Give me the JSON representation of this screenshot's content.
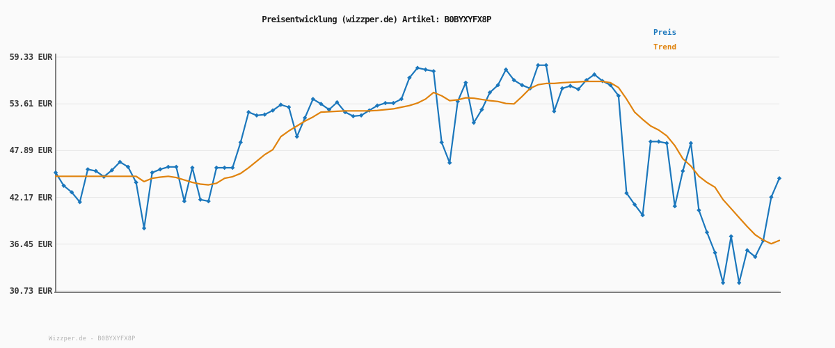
{
  "header": {
    "title": "Preisentwicklung (wizzper.de) Artikel: B0BYXYFX8P"
  },
  "legend": {
    "preis": "Preis",
    "trend": "Trend"
  },
  "watermark": "Wizzper.de - B0BYXYFX8P",
  "colors": {
    "preis": "#1b77bc",
    "trend": "#e0830e",
    "grid": "#e6e6e6",
    "axis": "#7f7f7f",
    "background": "#fafafa"
  },
  "chart_data": {
    "type": "line",
    "title": "Preisentwicklung (wizzper.de) Artikel: B0BYXYFX8P",
    "xlabel": "",
    "ylabel": "",
    "ylim": [
      30.73,
      59.33
    ],
    "grid": true,
    "legend_position": "top-right",
    "yticks": [
      {
        "label": "59.33 EUR",
        "value": 59.33
      },
      {
        "label": "53.61 EUR",
        "value": 53.61
      },
      {
        "label": "47.89 EUR",
        "value": 47.89
      },
      {
        "label": "42.17 EUR",
        "value": 42.17
      },
      {
        "label": "36.45 EUR",
        "value": 36.45
      },
      {
        "label": "30.73 EUR",
        "value": 30.73
      }
    ],
    "unit": "EUR",
    "series": [
      {
        "name": "Preis",
        "color": "#1b77bc",
        "marker": "diamond",
        "values": [
          45.2,
          43.6,
          42.8,
          41.6,
          45.6,
          45.4,
          44.7,
          45.5,
          46.5,
          45.9,
          44.0,
          38.4,
          45.2,
          45.6,
          45.9,
          45.9,
          41.7,
          45.8,
          41.9,
          41.7,
          45.8,
          45.8,
          45.8,
          48.9,
          52.6,
          52.2,
          52.3,
          52.8,
          53.5,
          53.2,
          49.6,
          51.9,
          54.2,
          53.6,
          52.9,
          53.8,
          52.6,
          52.1,
          52.2,
          52.8,
          53.4,
          53.7,
          53.7,
          54.2,
          56.8,
          58.0,
          57.8,
          57.6,
          48.9,
          46.4,
          53.9,
          56.2,
          51.3,
          52.9,
          55.0,
          55.9,
          57.8,
          56.5,
          55.9,
          55.5,
          58.33,
          58.33,
          52.7,
          55.5,
          55.8,
          55.4,
          56.5,
          57.2,
          56.4,
          55.9,
          54.6,
          42.7,
          41.3,
          40.0,
          49.0,
          49.0,
          48.8,
          41.1,
          45.4,
          48.8,
          40.6,
          37.9,
          35.4,
          31.73,
          37.4,
          31.73,
          35.7,
          34.9,
          36.9,
          42.2,
          44.5
        ]
      },
      {
        "name": "Trend",
        "color": "#e0830e",
        "marker": "none",
        "values": [
          44.75,
          44.75,
          44.75,
          44.75,
          44.75,
          44.75,
          44.75,
          44.75,
          44.75,
          44.75,
          44.75,
          44.1,
          44.5,
          44.65,
          44.75,
          44.6,
          44.3,
          44.0,
          43.8,
          43.7,
          43.9,
          44.5,
          44.7,
          45.1,
          45.8,
          46.6,
          47.4,
          48.0,
          49.6,
          50.3,
          50.9,
          51.5,
          52.0,
          52.6,
          52.65,
          52.7,
          52.75,
          52.75,
          52.75,
          52.75,
          52.8,
          52.9,
          53.0,
          53.2,
          53.4,
          53.7,
          54.2,
          55.0,
          54.6,
          54.0,
          54.1,
          54.35,
          54.3,
          54.15,
          54.0,
          53.9,
          53.65,
          53.6,
          54.5,
          55.5,
          55.95,
          56.1,
          56.1,
          56.2,
          56.25,
          56.3,
          56.35,
          56.35,
          56.35,
          56.2,
          55.6,
          54.2,
          52.6,
          51.7,
          50.9,
          50.4,
          49.7,
          48.5,
          46.9,
          46.0,
          44.75,
          44.0,
          43.4,
          41.9,
          40.8,
          39.7,
          38.6,
          37.6,
          36.95,
          36.5,
          36.9
        ]
      }
    ]
  }
}
